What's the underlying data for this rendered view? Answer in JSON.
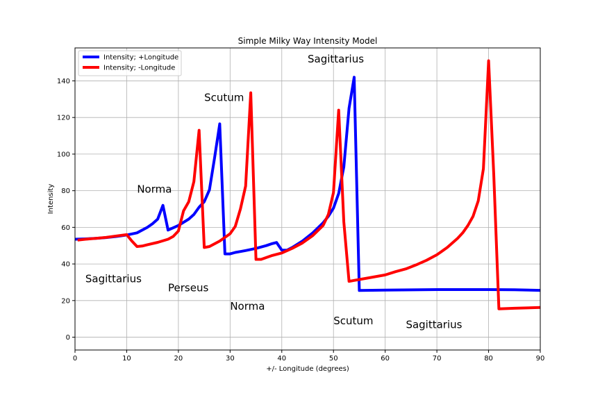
{
  "chart_data": {
    "type": "line",
    "title": "Simple Milky Way Intensity Model",
    "xlabel": "+/- Longitude (degrees)",
    "ylabel": "Intensity",
    "xlim": [
      0,
      90
    ],
    "ylim": [
      -7,
      158
    ],
    "xticks": [
      0,
      10,
      20,
      30,
      40,
      50,
      60,
      70,
      80,
      90
    ],
    "yticks": [
      0,
      20,
      40,
      60,
      80,
      100,
      120,
      140
    ],
    "grid": true,
    "legend_position": "top-left",
    "series": [
      {
        "name": "Intensity; +Longitude",
        "color": "#0000ff",
        "x": [
          0,
          2,
          4,
          6,
          8,
          10,
          12,
          14,
          15,
          16,
          17,
          18,
          20,
          22,
          23,
          24,
          25,
          26,
          27,
          28,
          29,
          30,
          31,
          32,
          33,
          35,
          37,
          38,
          39,
          40,
          41,
          42,
          44,
          46,
          48,
          49,
          50,
          51,
          52,
          53,
          54,
          55,
          60,
          70,
          80,
          85,
          90
        ],
        "y": [
          53.5,
          53.7,
          54,
          54.4,
          55,
          55.8,
          57,
          60,
          62,
          64.5,
          72,
          58.5,
          61,
          64.5,
          67,
          71,
          74,
          80.5,
          98,
          116.5,
          45.5,
          45.5,
          46.3,
          46.8,
          47.3,
          48.5,
          50,
          51,
          51.7,
          47.5,
          47.5,
          49,
          52.5,
          57,
          62.5,
          66,
          70.5,
          78.5,
          93,
          125,
          142,
          25.5,
          25.7,
          26,
          26,
          25.9,
          25.6
        ]
      },
      {
        "name": "Intensity; -Longitude",
        "color": "#ff0000",
        "x": [
          0.5,
          2,
          4,
          6,
          8,
          10,
          11,
          12,
          13,
          14,
          16,
          18,
          19,
          20,
          21,
          22,
          23,
          24,
          25,
          26,
          28,
          30,
          31,
          32,
          33,
          34,
          35,
          36,
          37,
          38,
          40,
          42,
          44,
          46,
          48,
          49,
          50,
          51,
          52,
          53,
          55,
          57,
          60,
          62,
          64,
          66,
          68,
          70,
          72,
          74,
          75,
          76,
          77,
          78,
          79,
          80,
          81,
          82,
          85,
          90
        ],
        "y": [
          53,
          53.5,
          54,
          54.5,
          55.3,
          56,
          52.5,
          49.5,
          49.8,
          50.5,
          51.8,
          53.5,
          55,
          58,
          69,
          74,
          85,
          113,
          49,
          49.5,
          52.5,
          56.5,
          60.5,
          70,
          82.5,
          133.5,
          42.5,
          42.5,
          43.5,
          44.5,
          46,
          48.5,
          51.5,
          55.5,
          61,
          67,
          79,
          124,
          63,
          30.5,
          31.5,
          32.5,
          34,
          35.8,
          37.3,
          39.5,
          42,
          45,
          49,
          54,
          57,
          61,
          66,
          74.5,
          92,
          151,
          89,
          15.5,
          15.8,
          16.2
        ]
      }
    ],
    "annotations": [
      {
        "text": "Norma",
        "x": 12,
        "y": 79
      },
      {
        "text": "Scutum",
        "x": 25,
        "y": 129
      },
      {
        "text": "Sagittarius",
        "x": 45,
        "y": 150
      },
      {
        "text": "Sagittarius",
        "x": 2,
        "y": 30
      },
      {
        "text": "Perseus",
        "x": 18,
        "y": 25
      },
      {
        "text": "Norma",
        "x": 30,
        "y": 15
      },
      {
        "text": "Scutum",
        "x": 50,
        "y": 7
      },
      {
        "text": "Sagittarius",
        "x": 64,
        "y": 5
      }
    ]
  }
}
